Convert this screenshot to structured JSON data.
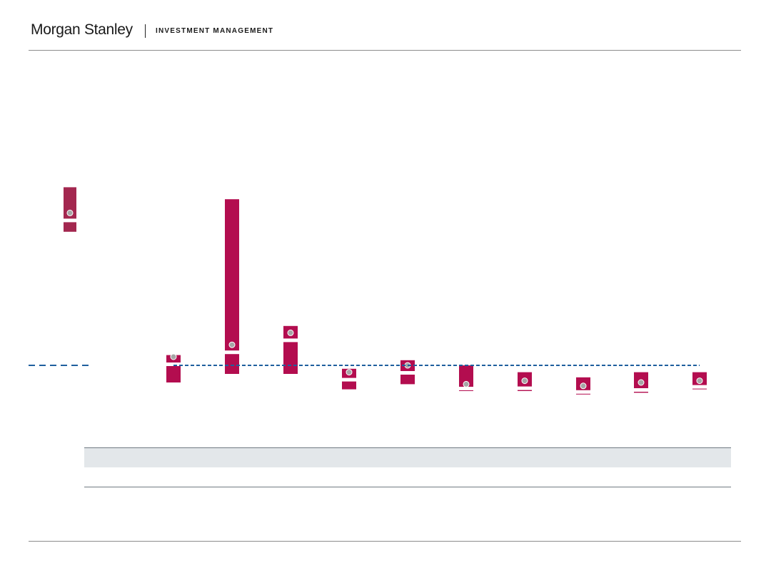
{
  "header": {
    "brand": "Morgan Stanley",
    "subtitle": "INVESTMENT MANAGEMENT"
  },
  "colors": {
    "bar": "#b30d4f",
    "bar_muted": "#a3274f",
    "marker": "#a6a6a6",
    "reference_line": "#1f5f9e",
    "table_band": "#e3e7ea"
  },
  "chart_data": {
    "type": "range-bar",
    "description_units": "relative values (axis not shown)",
    "reference_value": 0,
    "series": [
      {
        "low": 78,
        "high": 104,
        "point": 89,
        "highlight": true
      },
      {
        "low": -10,
        "high": 6,
        "point": 5
      },
      {
        "low": -5,
        "high": 97,
        "point": 12
      },
      {
        "low": -5,
        "high": 23,
        "point": 19
      },
      {
        "low": -14,
        "high": -2,
        "point": -4
      },
      {
        "low": -11,
        "high": 3,
        "point": 0
      },
      {
        "low": -15,
        "high": 0,
        "point": -11
      },
      {
        "low": -15,
        "high": -4,
        "point": -9
      },
      {
        "low": -17,
        "high": -7,
        "point": -12
      },
      {
        "low": -16,
        "high": -4,
        "point": -10
      },
      {
        "low": -14,
        "high": -4,
        "point": -9
      }
    ]
  }
}
